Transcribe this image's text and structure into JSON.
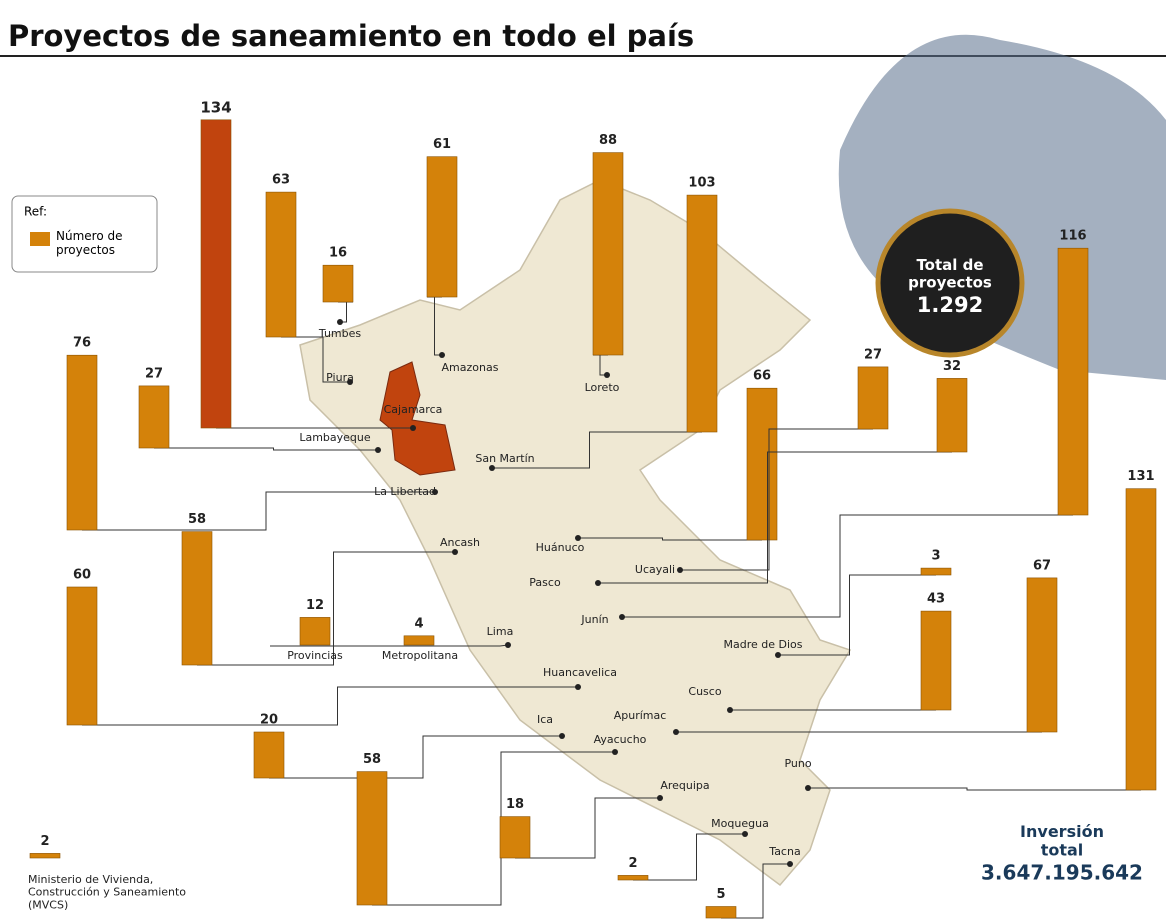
{
  "chart_data": {
    "type": "bar",
    "title": "Proyectos de saneamiento en todo el país",
    "legend_title": "Ref:",
    "series": [
      {
        "name": "Número de proyectos",
        "color": "#d4820a",
        "highlight_color": "#c1440e",
        "values": [
          16,
          63,
          134,
          61,
          88,
          103,
          27,
          76,
          58,
          66,
          27,
          32,
          116,
          12,
          4,
          3,
          43,
          67,
          131,
          60,
          20,
          58,
          18,
          2,
          5,
          2
        ]
      }
    ],
    "categories": [
      "Tumbes",
      "Piura",
      "Cajamarca",
      "Amazonas",
      "Loreto",
      "San Martín",
      "Lambayeque",
      "La Libertad",
      "Ancash",
      "Huánuco",
      "Ucayali",
      "Pasco",
      "Junín",
      "Provincias",
      "Metropolitana",
      "Madre de Dios",
      "Cusco",
      "Apurímac",
      "Puno",
      "Huancavelica",
      "Ica",
      "Ayacucho",
      "Arequipa",
      "Moquegua",
      "Tacna",
      "Ministerio de Vivienda, Construcción y Saneamiento (MVCS)"
    ],
    "highlight": "Cajamarca",
    "group_label": "Lima",
    "total": {
      "label": "Total de proyectos",
      "value": 1292,
      "value_label": "1.292"
    },
    "investment": {
      "label": "Inversión total",
      "value": 3647195642,
      "value_label": "3.647.195.642"
    }
  }
}
